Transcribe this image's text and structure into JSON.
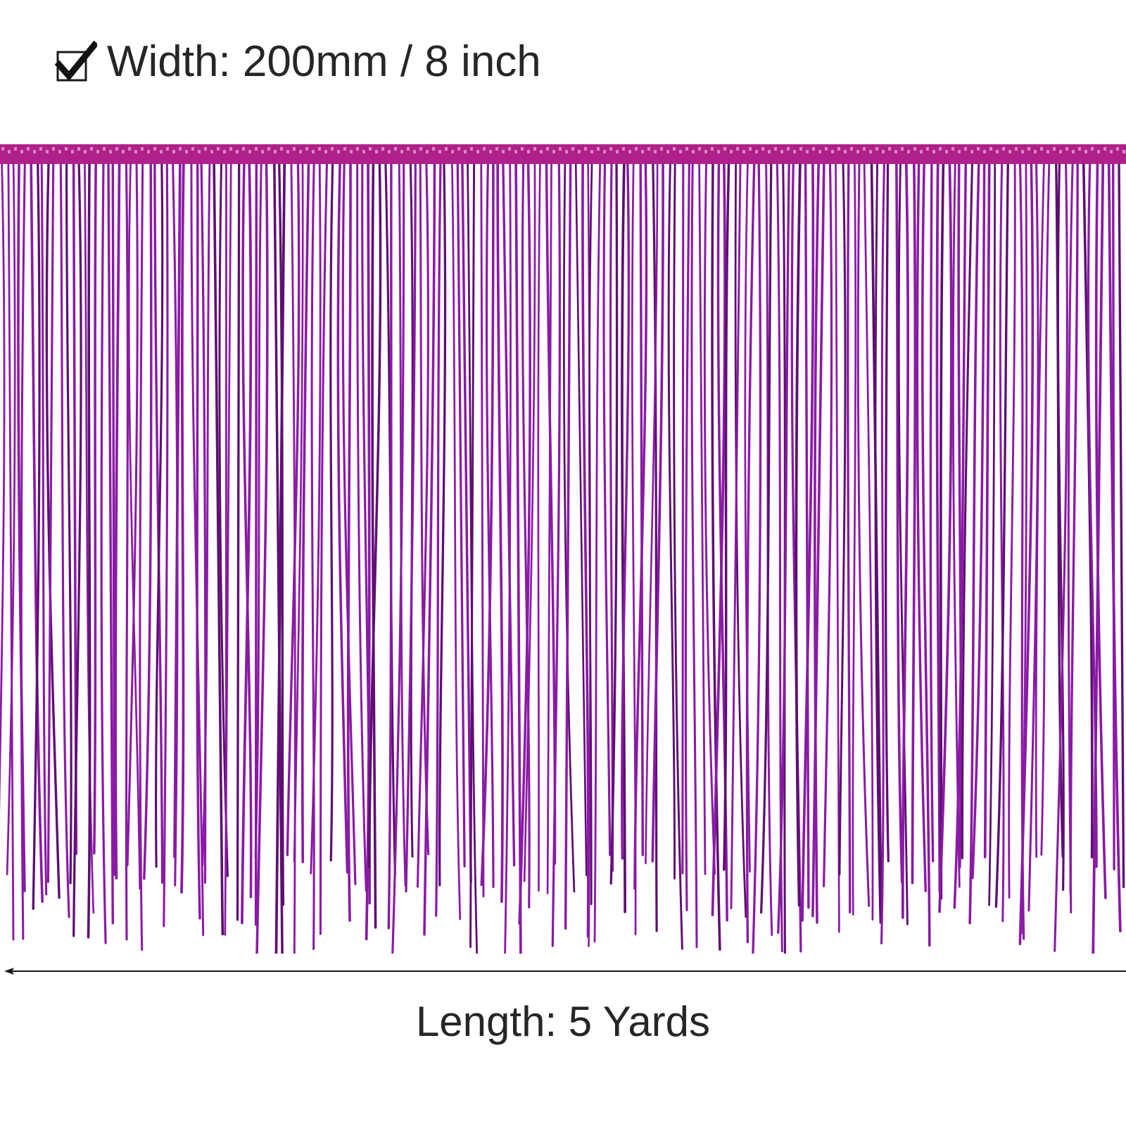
{
  "width_row": {
    "icon": "checkbox-checked-icon",
    "label": "Width: 200mm / 8 inch"
  },
  "length_row": {
    "icon": "left-arrow-line-icon",
    "label": "Length: 5 Yards"
  },
  "product": {
    "image": "purple-fringe-trim",
    "colors": {
      "tape": "#b0208a",
      "strand": "#8a1aa6",
      "strand_shadow": "#5e0f72",
      "text": "#262626"
    }
  }
}
